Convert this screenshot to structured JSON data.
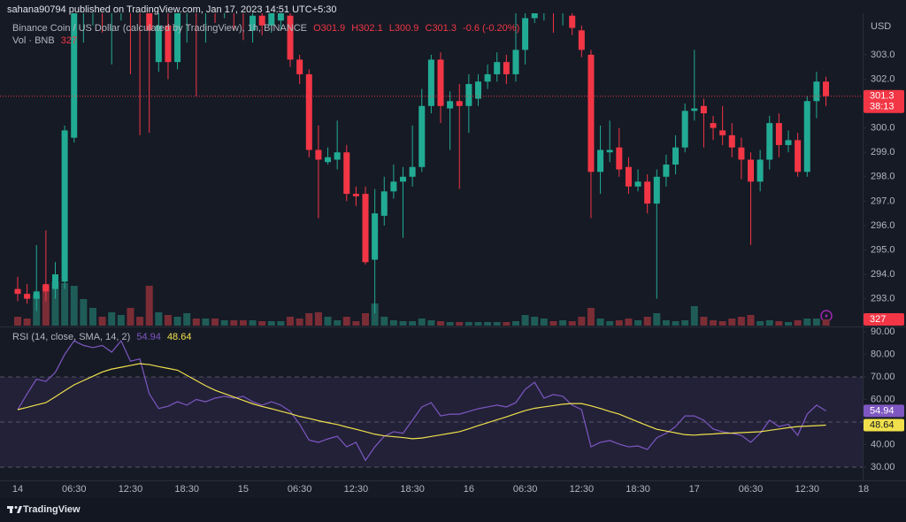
{
  "header": {
    "publisher_line": "sahana90794 published on TradingView.com, Jan 17, 2023 14:51 UTC+5:30"
  },
  "footer": {
    "brand": "TradingView"
  },
  "chart_data": [
    {
      "type": "candlestick",
      "title": "Binance Coin / US Dollar (calculated by TradingView), 1h, BINANCE",
      "ohlc_legend": [
        "O301.9",
        "H302.1",
        "L300.9",
        "C301.3"
      ],
      "change_label": "-0.6 (-0.20%)",
      "y_axis_label": "USD",
      "last_price_label": "301.3",
      "countdown": "38:13",
      "up_color": "#22ab94",
      "down_color": "#f23645",
      "categories": [
        "14",
        null,
        null,
        null,
        null,
        null,
        "06:30",
        null,
        null,
        null,
        null,
        null,
        "12:30",
        null,
        null,
        null,
        null,
        null,
        "18:30",
        null,
        null,
        null,
        null,
        null,
        "15",
        null,
        null,
        null,
        null,
        null,
        "06:30",
        null,
        null,
        null,
        null,
        null,
        "12:30",
        null,
        null,
        null,
        null,
        null,
        "18:30",
        null,
        null,
        null,
        null,
        null,
        "16",
        null,
        null,
        null,
        null,
        null,
        "06:30",
        null,
        null,
        null,
        null,
        null,
        "12:30",
        null,
        null,
        null,
        null,
        null,
        "18:30",
        null,
        null,
        null,
        null,
        null,
        "17",
        null,
        null,
        null,
        null,
        null,
        "06:30",
        null,
        null,
        null,
        null,
        null,
        "12:30",
        null,
        null,
        null,
        null,
        null,
        "18"
      ],
      "open": [
        293.4,
        293.2,
        293.0,
        293.6,
        293.4,
        293.7,
        299.6,
        304.8,
        305.5,
        305.8,
        305.2,
        305.4,
        305.9,
        305.0,
        304.9,
        302.7,
        304.2,
        302.7,
        305,
        305.6,
        305.2,
        305.8,
        305.4,
        305.9,
        305.5,
        304.0,
        304.6,
        304.2,
        304.4,
        304.6,
        302.8,
        302.2,
        299.1,
        298.6,
        298.7,
        299.0,
        297.3,
        297.3,
        294.6,
        296.4,
        297.4,
        297.8,
        298.0,
        298.4,
        300.9,
        302.8,
        300.8,
        301.1,
        300.9,
        301.2,
        301.9,
        302.2,
        302.7,
        302.2,
        303.2,
        304.5,
        305.2,
        305.4,
        305.0,
        304.6,
        304.0,
        303.0,
        298.2,
        299.0,
        299.2,
        298.4,
        297.6,
        297.8,
        296.9,
        298.0,
        298.5,
        299.2,
        300.7,
        300.9,
        300.2,
        299.9,
        299.7,
        299.2,
        298.7,
        297.8,
        298.7,
        300.2,
        299.3,
        299.5,
        298.2,
        301.1,
        301.9,
        null,
        null,
        null,
        null
      ],
      "high": [
        293.9,
        293.6,
        295.2,
        295.8,
        294.5,
        300.1,
        305,
        306,
        306.2,
        306.5,
        306,
        306.1,
        306.3,
        305.6,
        305.3,
        305,
        304.8,
        305.5,
        306,
        306,
        306.2,
        306.3,
        306.4,
        306.3,
        305.9,
        305.2,
        305,
        305.1,
        305.2,
        304.8,
        303.0,
        302.4,
        300.1,
        299.2,
        300.3,
        299.3,
        297.6,
        297.6,
        297.5,
        298.0,
        298.5,
        298.4,
        300.1,
        301.6,
        303.0,
        303.1,
        301.5,
        301.8,
        302.2,
        302.2,
        302.6,
        303.1,
        303.0,
        305.0,
        305.2,
        305.8,
        306,
        305.8,
        305.9,
        305.0,
        304.2,
        303.2,
        300.1,
        300.3,
        300.0,
        298.8,
        298.3,
        298.1,
        298.3,
        298.9,
        299.7,
        301.0,
        303.2,
        301.2,
        300.5,
        300.9,
        300.2,
        299.6,
        299.0,
        299.1,
        300.5,
        300.6,
        299.9,
        299.8,
        301.3,
        302.3,
        302.1,
        null,
        null,
        null,
        null
      ],
      "low": [
        292.9,
        292.8,
        292.5,
        292.9,
        293.0,
        293.4,
        299.4,
        303.5,
        304.2,
        303.9,
        302.6,
        304.4,
        302.2,
        299.7,
        299.8,
        302.3,
        302.0,
        302.4,
        303.5,
        301.3,
        303.5,
        304.3,
        304.5,
        304.0,
        303.6,
        303.5,
        303.8,
        303.9,
        304.0,
        302.5,
        301.8,
        298.8,
        296.3,
        298.5,
        298.3,
        297.0,
        296.8,
        294.4,
        292.4,
        296.0,
        297.1,
        295.5,
        297.6,
        298.2,
        300.6,
        300.2,
        299.1,
        297.5,
        299.8,
        300.9,
        301.6,
        301.9,
        301.8,
        301.9,
        302.6,
        304.3,
        304.4,
        303.9,
        304.2,
        303.8,
        302.9,
        296.3,
        297.3,
        298.6,
        298.0,
        297.3,
        297.4,
        296.5,
        293.0,
        297.6,
        298.1,
        299.0,
        300.3,
        299.2,
        299.5,
        299.3,
        298.8,
        297.9,
        295.2,
        297.4,
        298.3,
        298.8,
        299.0,
        298.0,
        298.0,
        300.4,
        300.9,
        null,
        null,
        null,
        null
      ],
      "close": [
        293.2,
        293.0,
        293.3,
        293.3,
        294.0,
        299.9,
        304.7,
        305.5,
        305.8,
        305.2,
        305.4,
        305.9,
        305.0,
        304.9,
        304.0,
        304.2,
        302.7,
        305,
        305.6,
        305.2,
        305.8,
        305.4,
        305.9,
        305.5,
        305.0,
        304.6,
        304.2,
        304.8,
        304.8,
        302.8,
        302.2,
        299.1,
        298.7,
        298.8,
        299.0,
        297.3,
        297.2,
        294.5,
        296.5,
        297.4,
        297.8,
        298.0,
        298.4,
        300.9,
        302.8,
        300.9,
        301.1,
        300.9,
        301.8,
        301.9,
        302.2,
        302.7,
        302.2,
        303.2,
        304.5,
        305.2,
        305.4,
        305.0,
        305.3,
        304.1,
        303.2,
        298.2,
        299.1,
        299.1,
        298.3,
        297.6,
        297.8,
        296.9,
        298.0,
        298.5,
        299.2,
        300.7,
        300.8,
        300.6,
        300.0,
        299.7,
        299.2,
        298.7,
        297.8,
        298.7,
        300.2,
        299.3,
        299.5,
        298.2,
        301.1,
        301.9,
        301.3,
        null,
        null,
        null,
        null
      ],
      "volume": {
        "name": "Vol · BNB",
        "value_label": "327",
        "up_color": "#1f5c57",
        "down_color": "#7b2d36",
        "values": [
          470,
          376,
          1645,
          2115,
          2350,
          2256,
          2115,
          1410,
          940,
          470,
          705,
          564,
          940,
          470,
          2115,
          705,
          564,
          470,
          658,
          376,
          376,
          376,
          282,
          282,
          282,
          282,
          235,
          235,
          235,
          470,
          376,
          658,
          705,
          470,
          282,
          470,
          235,
          658,
          1175,
          470,
          282,
          235,
          235,
          376,
          282,
          235,
          188,
          188,
          188,
          188,
          188,
          188,
          188,
          235,
          564,
          470,
          376,
          235,
          282,
          235,
          470,
          940,
          376,
          235,
          282,
          376,
          282,
          470,
          658,
          282,
          235,
          282,
          1034,
          470,
          282,
          235,
          376,
          470,
          564,
          235,
          282,
          235,
          188,
          282,
          376,
          376,
          327,
          null,
          null,
          null,
          null
        ]
      },
      "ylim": [
        291.9,
        304.7
      ],
      "yticks": [
        {
          "value": 293,
          "label": "293.0"
        },
        {
          "value": 294,
          "label": "294.0"
        },
        {
          "value": 295,
          "label": "295.0"
        },
        {
          "value": 296,
          "label": "296.0"
        },
        {
          "value": 297,
          "label": "297.0"
        },
        {
          "value": 298,
          "label": "298.0"
        },
        {
          "value": 299,
          "label": "299.0"
        },
        {
          "value": 300,
          "label": "300.0"
        },
        {
          "value": 302,
          "label": "302.0"
        },
        {
          "value": 303,
          "label": "303.0"
        }
      ]
    },
    {
      "type": "line",
      "title": "RSI (14, close, SMA, 14, 2)",
      "series": [
        {
          "color": "#7e57c2",
          "end_label": "54.94",
          "values": [
            55.5,
            62.5,
            69,
            68,
            72,
            80,
            86,
            84,
            83,
            84,
            81,
            86,
            77,
            78,
            62.5,
            56,
            57,
            59,
            57.5,
            60,
            59,
            60.6,
            61.4,
            60.6,
            61.4,
            59,
            57.5,
            59,
            57.5,
            54.7,
            49,
            42,
            41,
            42.5,
            43.7,
            39,
            41,
            33,
            39,
            43.7,
            45.7,
            45,
            50.8,
            56.7,
            58.6,
            52.7,
            53.5,
            53.5,
            54.7,
            55.9,
            56.7,
            57.5,
            56.7,
            58.6,
            64.5,
            67.6,
            60.6,
            62.2,
            61.4,
            57.5,
            55.5,
            39,
            41,
            41.8,
            40.2,
            39,
            39.4,
            37.8,
            43,
            45,
            48,
            52.7,
            52.7,
            50.8,
            46.9,
            45.7,
            45,
            44.1,
            41,
            45,
            50.8,
            48,
            49,
            44.1,
            53.5,
            57.5,
            54.94,
            null,
            null,
            null,
            null
          ]
        },
        {
          "color": "#f0e04c",
          "end_label": "48.64",
          "values": [
            55.5,
            56.5,
            57.6,
            58.6,
            61.2,
            63.9,
            66.5,
            68.4,
            70.3,
            72.2,
            73.5,
            74.3,
            75.1,
            75.9,
            75.5,
            74.6,
            73.8,
            73,
            70.7,
            68.4,
            66.1,
            64.1,
            62.6,
            61.1,
            59.6,
            58.1,
            56.9,
            55.9,
            54.8,
            53.7,
            52.5,
            51.6,
            50.6,
            49.7,
            48.9,
            47.8,
            46.8,
            45.7,
            44.6,
            43.9,
            43.5,
            43.1,
            42.6,
            42.9,
            43.6,
            44.3,
            45,
            45.7,
            47,
            48.4,
            49.7,
            51,
            52.3,
            53.7,
            55.1,
            56.1,
            56.7,
            57.3,
            57.9,
            58.2,
            58.2,
            57.2,
            56,
            54.7,
            53.5,
            51.8,
            50.1,
            48.4,
            46.8,
            46,
            45.2,
            44.4,
            44.2,
            44.5,
            44.7,
            45,
            45.1,
            45.3,
            45.5,
            45.7,
            46.3,
            46.9,
            47.5,
            48,
            48.2,
            48.4,
            48.64,
            null,
            null,
            null,
            null
          ]
        }
      ],
      "levels": [
        70,
        50,
        30
      ],
      "band_color": "#7e57c2",
      "ylim": [
        24.1,
        92.0
      ],
      "yticks": [
        {
          "value": 30,
          "label": "30.00"
        },
        {
          "value": 40,
          "label": "40.00"
        },
        {
          "value": 60,
          "label": "60.00"
        },
        {
          "value": 70,
          "label": "70.00"
        },
        {
          "value": 80,
          "label": "80.00"
        },
        {
          "value": 90,
          "label": "90.00"
        }
      ]
    }
  ]
}
